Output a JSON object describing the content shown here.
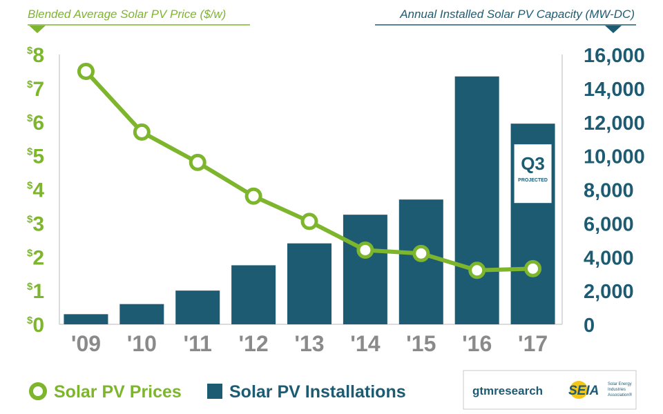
{
  "chart_data": {
    "type": "bar",
    "title": "",
    "categories": [
      "'09",
      "'10",
      "'11",
      "'12",
      "'13",
      "'14",
      "'15",
      "'16",
      "'17"
    ],
    "left_axis": {
      "label": "Blended Average Solar PV Price ($/w)",
      "ticks": [
        {
          "cur": "$",
          "num": "0"
        },
        {
          "cur": "$",
          "num": "1"
        },
        {
          "cur": "$",
          "num": "2"
        },
        {
          "cur": "$",
          "num": "3"
        },
        {
          "cur": "$",
          "num": "4"
        },
        {
          "cur": "$",
          "num": "5"
        },
        {
          "cur": "$",
          "num": "6"
        },
        {
          "cur": "$",
          "num": "7"
        },
        {
          "cur": "$",
          "num": "8"
        }
      ],
      "ylim": [
        0,
        8
      ]
    },
    "right_axis": {
      "label": "Annual Installed Solar PV Capacity (MW-DC)",
      "ticks": [
        "0",
        "2,000",
        "4,000",
        "6,000",
        "8,000",
        "10,000",
        "12,000",
        "14,000",
        "16,000"
      ],
      "ylim": [
        0,
        16000
      ]
    },
    "series": [
      {
        "name": "Solar PV Installations",
        "type": "bar",
        "axis": "right",
        "values": [
          600,
          1200,
          2000,
          3500,
          4800,
          6500,
          7400,
          14700,
          11900
        ]
      },
      {
        "name": "Solar PV Prices",
        "type": "line",
        "axis": "left",
        "values": [
          7.5,
          5.7,
          4.8,
          3.8,
          3.05,
          2.2,
          2.1,
          1.6,
          1.65
        ]
      }
    ],
    "annotation": {
      "category": "'17",
      "title": "Q3",
      "subtitle": "PROJECTED"
    },
    "legend": {
      "placement": "bottom-left"
    },
    "grid": false
  },
  "logos": {
    "gtm": "gtmresearch",
    "seia": "SEIA",
    "seia_small": [
      "Solar Energy",
      "Industries",
      "Association®"
    ]
  },
  "colors": {
    "green": "#7db52d",
    "blue": "#1d5b73"
  }
}
